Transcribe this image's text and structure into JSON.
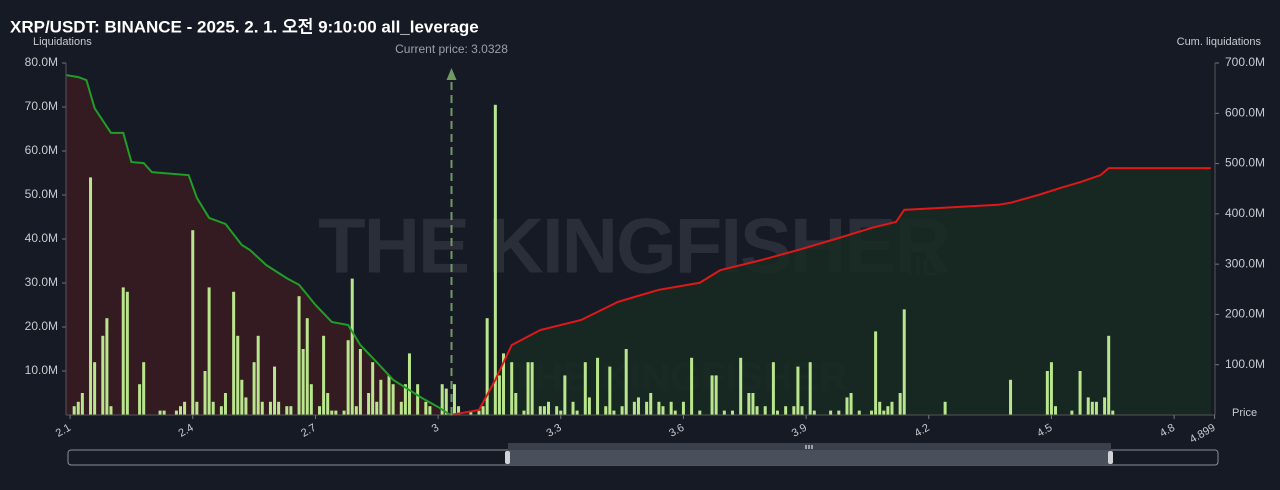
{
  "chart_data": {
    "type": "bar",
    "title": "XRP/USDT: BINANCE - 2025. 2. 1. 오전 9:10:00 all_leverage",
    "y_label": "Liquidations",
    "y2_label": "Cum. liquidations",
    "x_label": "Price",
    "watermark": "THE KINGFISHER",
    "watermark_suffix": ".io",
    "annotation": {
      "text": "Current price: 3.0328",
      "x": 3.0328
    },
    "xlim": [
      2.09,
      4.9
    ],
    "xticks": [
      2.1,
      2.4,
      2.7,
      3,
      3.3,
      3.6,
      3.9,
      4.2,
      4.5,
      4.8,
      4.899
    ],
    "ylim": [
      0,
      80
    ],
    "yticks": [
      {
        "value": 10,
        "label": "10.0M"
      },
      {
        "value": 20,
        "label": "20.0M"
      },
      {
        "value": 30,
        "label": "30.0M"
      },
      {
        "value": 40,
        "label": "40.0M"
      },
      {
        "value": 50,
        "label": "50.0M"
      },
      {
        "value": 60,
        "label": "60.0M"
      },
      {
        "value": 70,
        "label": "70.0M"
      },
      {
        "value": 80,
        "label": "80.0M"
      }
    ],
    "y2lim": [
      0,
      700
    ],
    "y2ticks": [
      {
        "value": 100,
        "label": "100.0M"
      },
      {
        "value": 200,
        "label": "200.0M"
      },
      {
        "value": 300,
        "label": "300.0M"
      },
      {
        "value": 400,
        "label": "400.0M"
      },
      {
        "value": 500,
        "label": "500.0M"
      },
      {
        "value": 600,
        "label": "600.0M"
      },
      {
        "value": 700,
        "label": "700.0M"
      }
    ],
    "series": [
      {
        "type": "bar",
        "color": "#b9e68c",
        "x": [
          2.11,
          2.12,
          2.13,
          2.15,
          2.16,
          2.18,
          2.19,
          2.2,
          2.23,
          2.24,
          2.27,
          2.28,
          2.32,
          2.33,
          2.36,
          2.37,
          2.38,
          2.4,
          2.41,
          2.43,
          2.44,
          2.45,
          2.47,
          2.48,
          2.5,
          2.51,
          2.52,
          2.53,
          2.55,
          2.56,
          2.57,
          2.59,
          2.6,
          2.61,
          2.63,
          2.64,
          2.66,
          2.67,
          2.68,
          2.69,
          2.71,
          2.72,
          2.73,
          2.74,
          2.75,
          2.77,
          2.78,
          2.79,
          2.8,
          2.81,
          2.83,
          2.84,
          2.85,
          2.86,
          2.88,
          2.89,
          2.91,
          2.92,
          2.93,
          2.95,
          2.97,
          2.98,
          3.01,
          3.02,
          3.04,
          3.05,
          3.08,
          3.1,
          3.11,
          3.12,
          3.14,
          3.15,
          3.16,
          3.18,
          3.19,
          3.21,
          3.22,
          3.23,
          3.25,
          3.26,
          3.27,
          3.29,
          3.3,
          3.31,
          3.33,
          3.34,
          3.36,
          3.37,
          3.39,
          3.41,
          3.42,
          3.43,
          3.45,
          3.46,
          3.48,
          3.49,
          3.51,
          3.52,
          3.54,
          3.55,
          3.57,
          3.58,
          3.6,
          3.62,
          3.64,
          3.67,
          3.68,
          3.7,
          3.72,
          3.74,
          3.76,
          3.77,
          3.78,
          3.8,
          3.82,
          3.83,
          3.85,
          3.87,
          3.88,
          3.89,
          3.91,
          3.92,
          3.96,
          3.98,
          4.0,
          4.01,
          4.03,
          4.06,
          4.07,
          4.08,
          4.09,
          4.1,
          4.11,
          4.13,
          4.14,
          4.24,
          4.4,
          4.49,
          4.5,
          4.51,
          4.55,
          4.57,
          4.59,
          4.6,
          4.61,
          4.63,
          4.64,
          4.65
        ],
        "values": [
          2,
          3,
          5,
          54,
          12,
          18,
          22,
          2,
          29,
          28,
          7,
          12,
          1,
          1,
          1,
          2,
          3,
          42,
          3,
          10,
          29,
          3,
          2,
          5,
          28,
          18,
          8,
          4,
          12,
          18,
          3,
          3,
          11,
          3,
          2,
          2,
          27,
          15,
          22,
          7,
          2,
          18,
          5,
          1,
          1,
          1,
          17,
          31,
          2,
          15,
          5,
          12,
          3,
          8,
          9,
          7,
          3,
          7,
          14,
          7,
          3,
          2,
          7,
          6,
          7,
          2,
          1,
          1,
          2,
          22,
          70.5,
          9,
          14,
          12,
          5,
          1,
          12,
          12,
          2,
          2,
          3,
          2,
          1,
          9,
          3,
          1,
          12,
          4,
          13,
          2,
          11,
          1,
          2,
          15,
          3,
          4,
          3,
          5,
          3,
          2,
          3,
          1,
          3,
          13,
          1,
          9,
          9,
          1,
          1,
          13,
          5,
          5,
          2,
          2,
          12,
          1,
          2,
          2,
          11,
          2,
          12,
          1,
          1,
          1,
          4,
          5,
          1,
          1,
          19,
          3,
          1,
          2,
          3,
          5,
          24,
          3,
          8,
          10,
          12,
          2,
          1,
          10,
          4,
          3,
          3,
          4,
          18,
          1
        ]
      },
      {
        "type": "line",
        "axis": "y2",
        "color": "#1f9e28",
        "fill": "#3a1c22",
        "x": [
          2.09,
          2.12,
          2.14,
          2.16,
          2.2,
          2.23,
          2.25,
          2.28,
          2.3,
          2.39,
          2.41,
          2.44,
          2.48,
          2.52,
          2.54,
          2.58,
          2.63,
          2.66,
          2.7,
          2.74,
          2.78,
          2.81,
          2.85,
          2.89,
          2.96,
          3.0,
          3.03
        ],
        "values": [
          676,
          672,
          666,
          610,
          561,
          561,
          503,
          501,
          483,
          477,
          432,
          392,
          380,
          338,
          328,
          298,
          272,
          259,
          219,
          185,
          179,
          139,
          105,
          70,
          34,
          16,
          0
        ]
      },
      {
        "type": "line",
        "axis": "y2",
        "color": "#e01818",
        "fill": "#172a22",
        "x": [
          3.03,
          3.1,
          3.14,
          3.18,
          3.25,
          3.35,
          3.44,
          3.54,
          3.64,
          3.69,
          3.79,
          3.88,
          3.98,
          4.06,
          4.12,
          4.14,
          4.23,
          4.37,
          4.4,
          4.47,
          4.52,
          4.57,
          4.62,
          4.64,
          4.89
        ],
        "values": [
          0,
          10,
          70,
          139,
          169,
          189,
          225,
          249,
          263,
          288,
          308,
          328,
          352,
          372,
          384,
          408,
          412,
          418,
          422,
          438,
          451,
          463,
          477,
          491,
          491
        ]
      }
    ]
  }
}
